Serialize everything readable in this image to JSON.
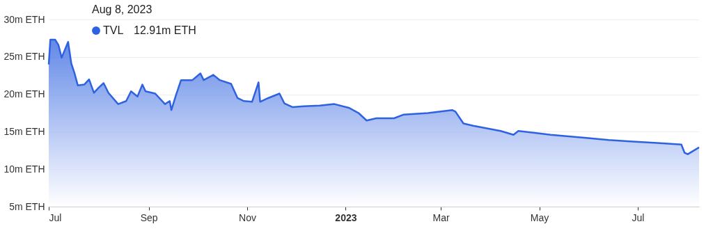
{
  "chart_data": {
    "type": "area",
    "x": [
      "2022-07-01",
      "2022-07-02",
      "2022-07-05",
      "2022-07-07",
      "2022-07-09",
      "2022-07-13",
      "2022-07-15",
      "2022-07-17",
      "2022-07-19",
      "2022-07-23",
      "2022-07-26",
      "2022-07-29",
      "2022-08-01",
      "2022-08-04",
      "2022-08-07",
      "2022-08-13",
      "2022-08-18",
      "2022-08-21",
      "2022-08-25",
      "2022-08-28",
      "2022-08-30",
      "2022-09-05",
      "2022-09-11",
      "2022-09-14",
      "2022-09-15",
      "2022-09-18",
      "2022-09-21",
      "2022-09-28",
      "2022-10-03",
      "2022-10-05",
      "2022-10-11",
      "2022-10-15",
      "2022-10-22",
      "2022-10-26",
      "2022-10-30",
      "2022-11-04",
      "2022-11-08",
      "2022-11-09",
      "2022-11-14",
      "2022-11-21",
      "2022-11-24",
      "2022-11-29",
      "2022-12-06",
      "2022-12-16",
      "2022-12-25",
      "2023-01-03",
      "2023-01-09",
      "2023-01-14",
      "2023-01-20",
      "2023-01-31",
      "2023-02-06",
      "2023-02-21",
      "2023-03-08",
      "2023-03-10",
      "2023-03-15",
      "2023-03-21",
      "2023-04-07",
      "2023-04-15",
      "2023-04-18",
      "2023-05-08",
      "2023-05-29",
      "2023-06-13",
      "2023-06-28",
      "2023-07-13",
      "2023-07-28",
      "2023-07-30",
      "2023-08-01",
      "2023-08-08"
    ],
    "series": [
      {
        "name": "TVL",
        "color": "#2f62e0",
        "values": [
          24.0,
          27.3,
          27.3,
          26.6,
          24.9,
          27.0,
          24.1,
          22.8,
          21.2,
          21.3,
          22.0,
          20.2,
          20.9,
          21.5,
          20.2,
          18.7,
          19.1,
          20.4,
          19.7,
          21.3,
          20.4,
          20.1,
          18.7,
          19.1,
          17.9,
          20.0,
          21.9,
          21.9,
          22.8,
          21.9,
          22.6,
          21.9,
          21.4,
          19.5,
          19.1,
          19.0,
          21.6,
          19.0,
          19.5,
          20.1,
          18.8,
          18.3,
          18.4,
          18.5,
          18.7,
          18.2,
          17.5,
          16.5,
          16.8,
          16.8,
          17.3,
          17.5,
          17.9,
          17.7,
          16.1,
          15.8,
          15.1,
          14.6,
          15.1,
          14.6,
          14.2,
          13.9,
          13.7,
          13.5,
          13.3,
          12.2,
          12.0,
          12.91
        ]
      }
    ],
    "xlim": [
      "2022-07-01",
      "2023-08-08"
    ],
    "xticks": [
      {
        "value": "2022-07-01",
        "label": "Jul"
      },
      {
        "value": "2022-09-01",
        "label": "Sep"
      },
      {
        "value": "2022-11-01",
        "label": "Nov"
      },
      {
        "value": "2023-01-01",
        "label": "2023"
      },
      {
        "value": "2023-03-01",
        "label": "Mar"
      },
      {
        "value": "2023-05-01",
        "label": "May"
      },
      {
        "value": "2023-07-01",
        "label": "Jul"
      }
    ],
    "ylim": [
      5,
      30
    ],
    "yticks": [
      {
        "value": 5,
        "label": "5m ETH"
      },
      {
        "value": 10,
        "label": "10m ETH"
      },
      {
        "value": 15,
        "label": "15m ETH"
      },
      {
        "value": 20,
        "label": "20m ETH"
      },
      {
        "value": 25,
        "label": "25m ETH"
      },
      {
        "value": 30,
        "label": "30m ETH"
      }
    ],
    "grid": "y",
    "legend": "top left",
    "annotations": [
      "Aug 8, 2023",
      "12.91m ETH"
    ]
  }
}
